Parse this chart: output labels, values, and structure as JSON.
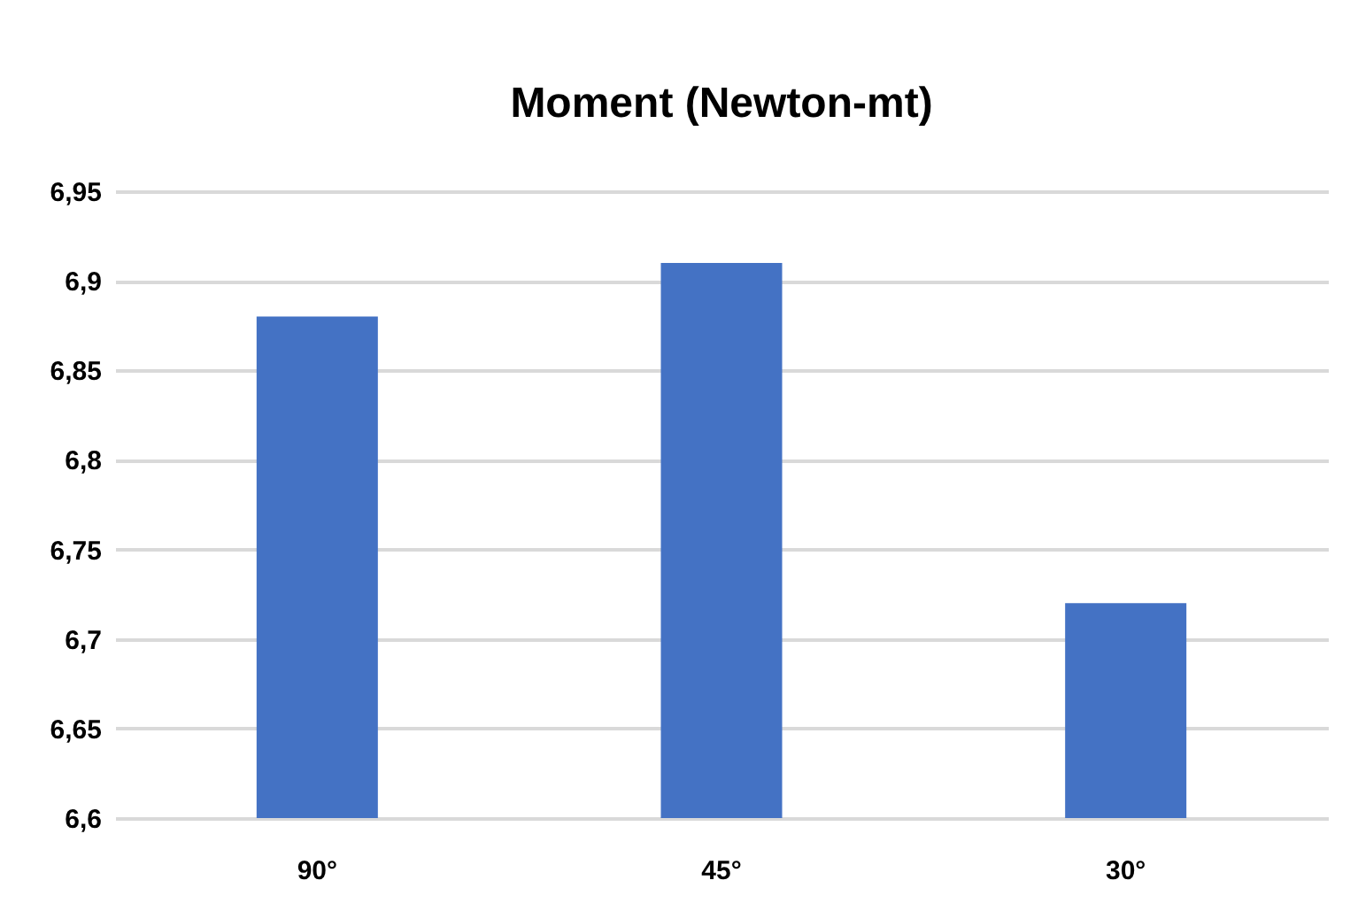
{
  "chart_data": {
    "type": "bar",
    "title": "Moment (Newton-mt)",
    "categories": [
      "90°",
      "45°",
      "30°"
    ],
    "values": [
      6.88,
      6.91,
      6.72
    ],
    "color": "#4472c4",
    "ylim": [
      6.6,
      6.95
    ],
    "yticks": [
      {
        "value": 6.6,
        "label": "6,6"
      },
      {
        "value": 6.65,
        "label": "6,65"
      },
      {
        "value": 6.7,
        "label": "6,7"
      },
      {
        "value": 6.75,
        "label": "6,75"
      },
      {
        "value": 6.8,
        "label": "6,8"
      },
      {
        "value": 6.85,
        "label": "6,85"
      },
      {
        "value": 6.9,
        "label": "6,9"
      },
      {
        "value": 6.95,
        "label": "6,95"
      }
    ],
    "grid": "y"
  }
}
